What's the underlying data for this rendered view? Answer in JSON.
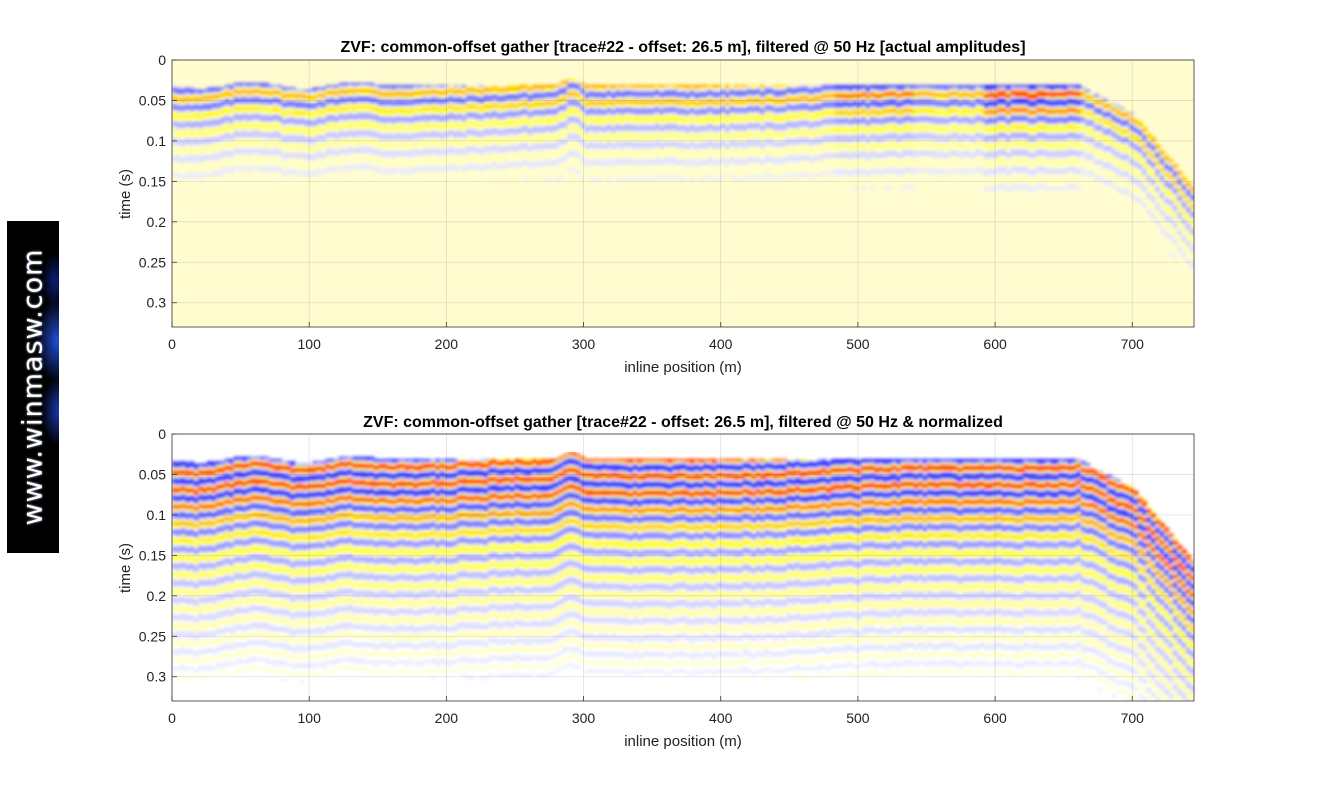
{
  "watermark": {
    "text": "www.winmasw.com"
  },
  "chart_data": [
    {
      "type": "heatmap",
      "title": "ZVF: common-offset gather [trace#22 - offset: 26.5 m], filtered @ 50 Hz [actual amplitudes]",
      "xlabel": "inline position (m)",
      "ylabel": "time (s)",
      "xlim": [
        0,
        745
      ],
      "ylim": [
        0,
        0.33
      ],
      "y_reversed": true,
      "xticks": [
        0,
        100,
        200,
        300,
        400,
        500,
        600,
        700
      ],
      "yticks": [
        0,
        0.05,
        0.1,
        0.15,
        0.2,
        0.25,
        0.3
      ],
      "ytick_labels": [
        "0",
        "0.05",
        "0.1",
        "0.15",
        "0.2",
        "0.25",
        "0.3"
      ],
      "grid": true,
      "colormap": [
        "#2020ff",
        "#ffffff",
        "#ffff00",
        "#ff0000"
      ],
      "normalized": false,
      "background_color": "#fffcd0"
    },
    {
      "type": "heatmap",
      "title": "ZVF: common-offset gather [trace#22 - offset: 26.5 m], filtered @ 50 Hz & normalized",
      "xlabel": "inline position (m)",
      "ylabel": "time (s)",
      "xlim": [
        0,
        745
      ],
      "ylim": [
        0,
        0.33
      ],
      "y_reversed": true,
      "xticks": [
        0,
        100,
        200,
        300,
        400,
        500,
        600,
        700
      ],
      "yticks": [
        0,
        0.05,
        0.1,
        0.15,
        0.2,
        0.25,
        0.3
      ],
      "ytick_labels": [
        "0",
        "0.05",
        "0.1",
        "0.15",
        "0.2",
        "0.25",
        "0.3"
      ],
      "grid": true,
      "colormap": [
        "#2020ff",
        "#ffffff",
        "#ffff00",
        "#ff0000"
      ],
      "normalized": true,
      "background_color": "#ffffff"
    }
  ]
}
